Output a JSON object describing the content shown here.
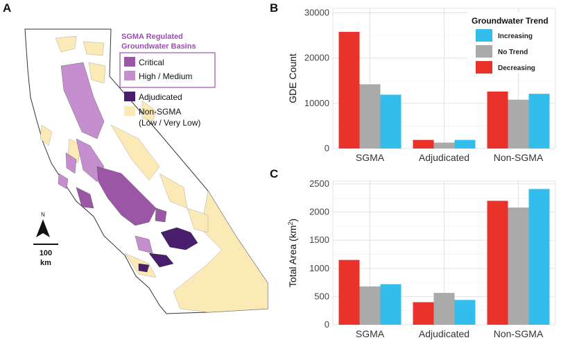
{
  "panels": {
    "a": "A",
    "b": "B",
    "c": "C"
  },
  "colors": {
    "critical": "#9b57a6",
    "high_medium": "#c58fcf",
    "adjudicated": "#4a1e6e",
    "non_sgma": "#fbeab6",
    "sgma_title": "#9b4fb0",
    "increasing": "#33bdec",
    "no_trend": "#aaaaaa",
    "decreasing": "#e8322a"
  },
  "map_legend": {
    "title_line1": "SGMA Regulated",
    "title_line2": "Groundwater Basins",
    "critical": "Critical",
    "high_medium": "High / Medium",
    "adjudicated": "Adjudicated",
    "non_sgma_line1": "Non-SGMA",
    "non_sgma_line2": "(Low / Very Low)"
  },
  "map_scale": {
    "north": "N",
    "distance": "100",
    "unit": "km"
  },
  "chart_data": [
    {
      "type": "bar",
      "panel": "B",
      "ylabel": "GDE Count",
      "ylim": [
        0,
        31000
      ],
      "yticks": [
        0,
        10000,
        20000,
        30000
      ],
      "ytick_labels": [
        "0",
        "10000",
        "20000",
        "30000"
      ],
      "categories": [
        "SGMA",
        "Adjudicated",
        "Non-SGMA"
      ],
      "legend_title": "Groundwater Trend",
      "legend": [
        "Increasing",
        "No Trend",
        "Decreasing"
      ],
      "series": [
        {
          "name": "Decreasing",
          "values": [
            25800,
            1900,
            12600
          ]
        },
        {
          "name": "No Trend",
          "values": [
            14200,
            1300,
            10800
          ]
        },
        {
          "name": "Increasing",
          "values": [
            11900,
            1900,
            12100
          ]
        }
      ]
    },
    {
      "type": "bar",
      "panel": "C",
      "ylabel_main": "Total Area (km",
      "ylabel_sup": "2",
      "ylabel_end": ")",
      "ylim": [
        0,
        2550
      ],
      "yticks": [
        0,
        500,
        1000,
        1500,
        2000,
        2500
      ],
      "ytick_labels": [
        "0",
        "500",
        "1000",
        "1500",
        "2000",
        "2500"
      ],
      "categories": [
        "SGMA",
        "Adjudicated",
        "Non-SGMA"
      ],
      "series": [
        {
          "name": "Decreasing",
          "values": [
            1150,
            400,
            2200
          ]
        },
        {
          "name": "No Trend",
          "values": [
            680,
            565,
            2080
          ]
        },
        {
          "name": "Increasing",
          "values": [
            720,
            440,
            2410
          ]
        }
      ]
    }
  ]
}
